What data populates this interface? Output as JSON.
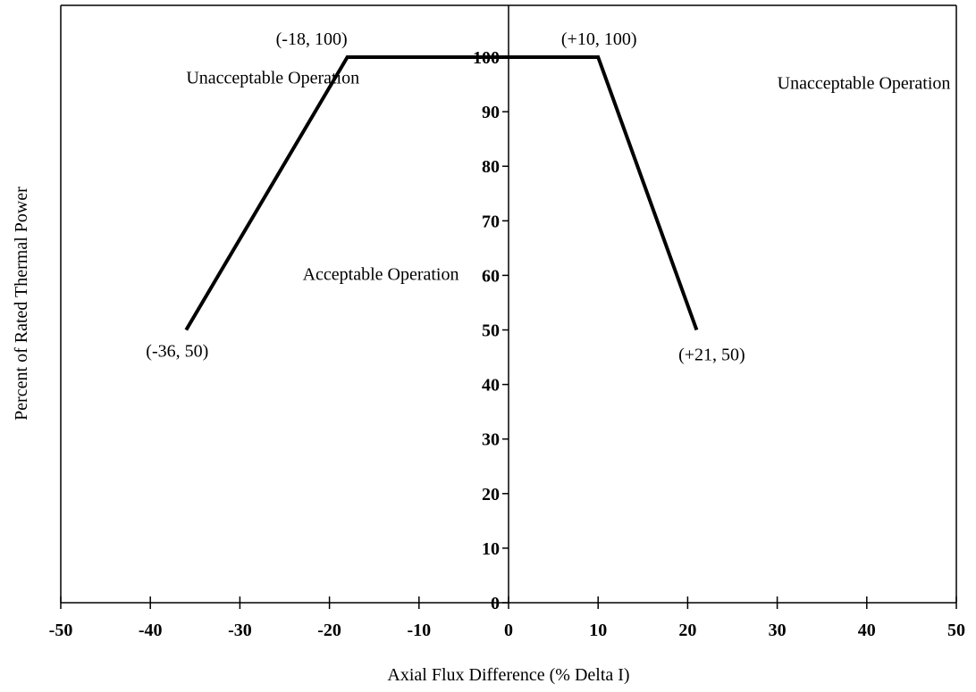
{
  "chart_data": {
    "type": "line",
    "title": "",
    "xlabel": "Axial Flux Difference (% Delta I)",
    "ylabel": "Percent of Rated Thermal Power",
    "xlim": [
      -50,
      50
    ],
    "ylim": [
      0,
      100
    ],
    "x_ticks": [
      -50,
      -40,
      -30,
      -20,
      -10,
      0,
      10,
      20,
      30,
      40,
      50
    ],
    "y_ticks": [
      0,
      10,
      20,
      30,
      40,
      50,
      60,
      70,
      80,
      90,
      100
    ],
    "grid": false,
    "series": [
      {
        "points": [
          {
            "x": -36,
            "y": 50
          },
          {
            "x": -18,
            "y": 100
          },
          {
            "x": 10,
            "y": 100
          },
          {
            "x": 21,
            "y": 50
          }
        ],
        "color": "#000000"
      }
    ],
    "point_labels": [
      {
        "text": "(-36, 50)",
        "x": -36,
        "y": 50
      },
      {
        "text": "(-18, 100)",
        "x": -18,
        "y": 100
      },
      {
        "text": "(+10, 100)",
        "x": 10,
        "y": 100
      },
      {
        "text": "(+21, 50)",
        "x": 21,
        "y": 50
      }
    ],
    "annotations": [
      {
        "text": "Unacceptable Operation",
        "x": -34,
        "y": 96
      },
      {
        "text": "Unacceptable Operation",
        "x": 32,
        "y": 95
      },
      {
        "text": "Acceptable Operation",
        "x": -21,
        "y": 60
      }
    ]
  }
}
